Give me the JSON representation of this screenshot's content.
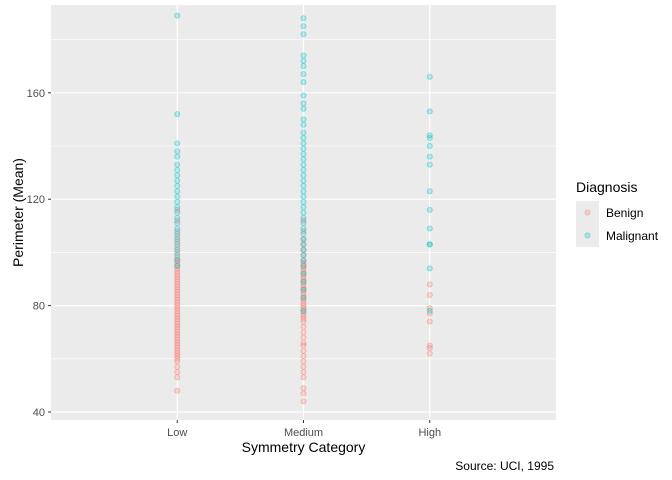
{
  "chart_data": {
    "type": "scatter",
    "title": "",
    "xlabel": "Symmetry Category",
    "ylabel": "Perimeter (Mean)",
    "caption": "Source: UCI, 1995",
    "categories": [
      "Low",
      "Medium",
      "High"
    ],
    "y_ticks": [
      40,
      80,
      120,
      160
    ],
    "ylim": [
      37,
      193
    ],
    "grid": true,
    "legend": {
      "title": "Diagnosis",
      "position": "right",
      "entries": [
        "Benign",
        "Malignant"
      ]
    },
    "colors": {
      "Benign": "#F8766D",
      "Malignant": "#00BFC4",
      "panel": "#EBEBEB"
    },
    "series": [
      {
        "name": "Benign",
        "points": {
          "Low": [
            48,
            53,
            55,
            57,
            59,
            60,
            61,
            62,
            63,
            64,
            65,
            66,
            67,
            68,
            69,
            70,
            71,
            72,
            73,
            74,
            75,
            76,
            77,
            78,
            79,
            80,
            81,
            82,
            83,
            84,
            85,
            86,
            87,
            88,
            89,
            90,
            91,
            92,
            93,
            94,
            95,
            96,
            97,
            98,
            100,
            102,
            104,
            106,
            108,
            112,
            116
          ],
          "Medium": [
            44,
            47,
            49,
            53,
            55,
            57,
            59,
            61,
            63,
            65,
            66,
            68,
            70,
            72,
            74,
            75,
            76,
            77,
            78,
            79,
            80,
            81,
            82,
            83,
            84,
            85,
            86,
            87,
            88,
            89,
            90,
            91,
            92,
            93,
            94,
            95,
            96,
            97,
            99,
            101,
            103,
            105,
            108,
            112
          ],
          "High": [
            62,
            64,
            65,
            74,
            77,
            79,
            84,
            88
          ]
        }
      },
      {
        "name": "Malignant",
        "points": {
          "Low": [
            95,
            97,
            99,
            101,
            103,
            105,
            107,
            109,
            111,
            113,
            115,
            117,
            119,
            121,
            123,
            125,
            127,
            129,
            131,
            133,
            136,
            138,
            141,
            152,
            189
          ],
          "Medium": [
            78,
            83,
            86,
            89,
            92,
            95,
            97,
            99,
            101,
            103,
            105,
            107,
            109,
            111,
            113,
            115,
            117,
            119,
            121,
            123,
            125,
            127,
            129,
            131,
            133,
            135,
            137,
            139,
            141,
            143,
            145,
            148,
            150,
            154,
            156,
            159,
            164,
            167,
            170,
            172,
            174,
            182,
            185,
            188
          ],
          "High": [
            78,
            94,
            103,
            103,
            109,
            116,
            123,
            133,
            136,
            140,
            143,
            144,
            153,
            166
          ]
        }
      }
    ]
  }
}
